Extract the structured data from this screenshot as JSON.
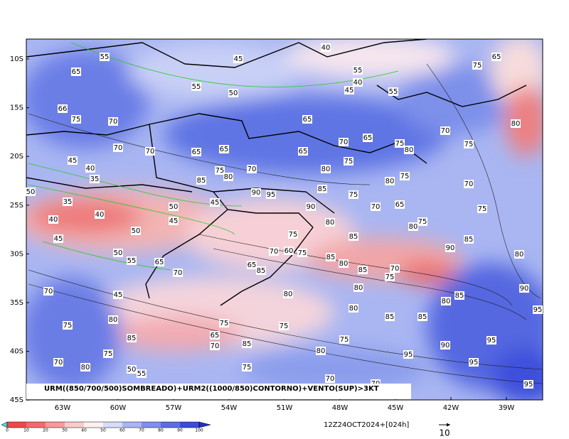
{
  "map": {
    "lat_labels": [
      "10S",
      "15S",
      "20S",
      "25S",
      "30S",
      "35S",
      "40S",
      "45S"
    ],
    "lon_labels": [
      "63W",
      "60W",
      "57W",
      "54W",
      "51W",
      "48W",
      "45W",
      "42W",
      "39W"
    ],
    "caption": "URM((850/700/500)SOMBREADO)+URM2((1000/850)CONTORNO)+VENTO(SUP)>3KT",
    "run_label": "12Z24OCT2024+[024h]",
    "vector_scale": 10,
    "colorbar_ticks": [
      0,
      10,
      20,
      30,
      40,
      50,
      60,
      70,
      80,
      90,
      100
    ],
    "contour_labels": [
      55,
      65,
      45,
      40,
      55,
      40,
      45,
      55,
      65,
      75,
      55,
      50,
      66,
      75,
      70,
      65,
      70,
      80,
      70,
      70,
      65,
      65,
      65,
      70,
      65,
      75,
      80,
      75,
      45,
      40,
      35,
      75,
      70,
      80,
      85,
      80,
      75,
      80,
      75,
      70,
      50,
      35,
      90,
      95,
      85,
      75,
      50,
      45,
      40,
      40,
      90,
      70,
      65,
      75,
      45,
      50,
      45,
      80,
      75,
      85,
      75,
      80,
      85,
      90,
      70,
      60,
      75,
      85,
      80,
      50,
      55,
      65,
      70,
      65,
      85,
      85,
      70,
      75,
      80,
      70,
      80,
      80,
      90,
      45,
      85,
      80,
      95,
      80,
      80,
      85,
      85,
      75,
      65,
      75,
      75,
      85,
      70,
      85,
      75,
      90,
      95,
      75,
      80,
      95,
      95,
      70,
      80,
      50,
      55,
      75,
      70,
      70,
      95
    ]
  }
}
